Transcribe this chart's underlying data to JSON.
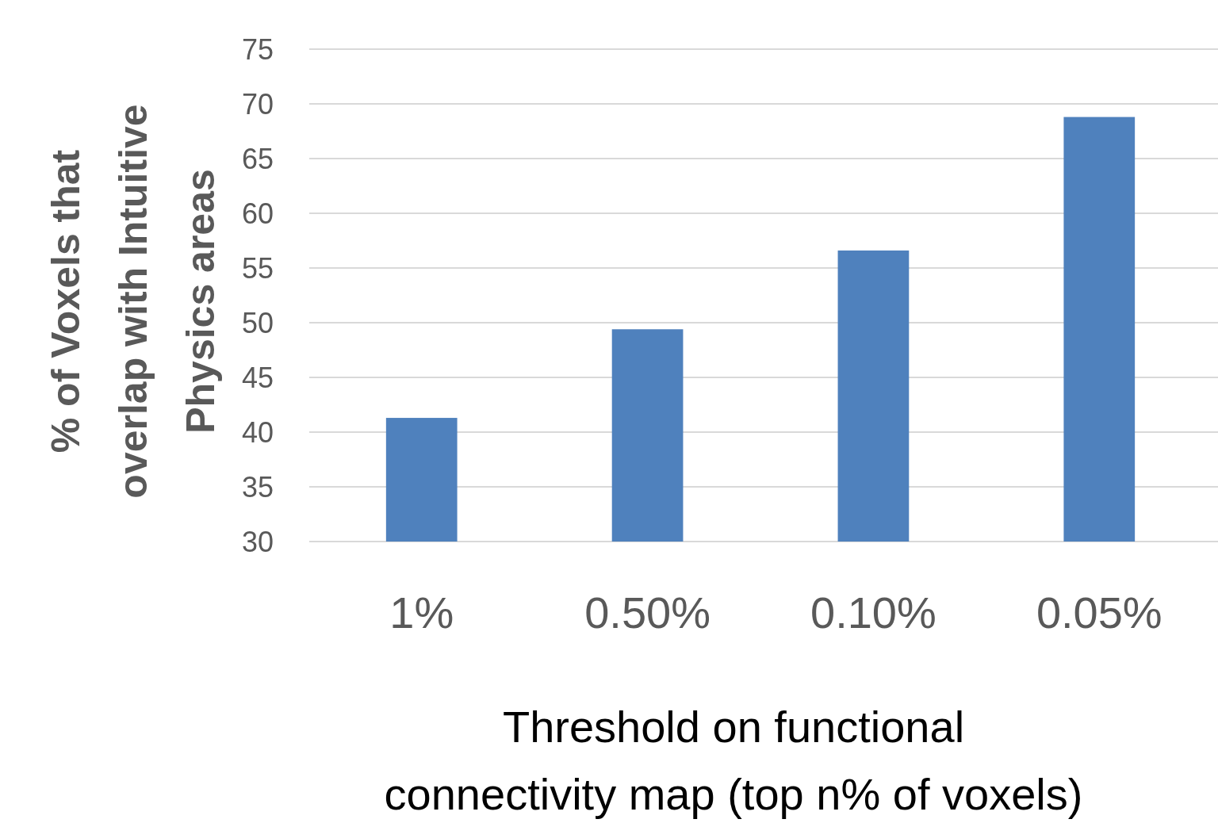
{
  "chart_data": {
    "type": "bar",
    "xlabel": "Threshold on functional connectivity map (top n% of voxels)",
    "ylabel": "% of Voxels that overlap with Intuitive Physics areas",
    "categories": [
      "1%",
      "0.50%",
      "0.10%",
      "0.05%"
    ],
    "values": [
      41.3,
      49.4,
      56.6,
      68.8
    ],
    "color": "#4f81bd",
    "ylim": [
      30,
      75
    ],
    "yticks": [
      30,
      35,
      40,
      45,
      50,
      55,
      60,
      65,
      70,
      75
    ],
    "grid": "y"
  }
}
